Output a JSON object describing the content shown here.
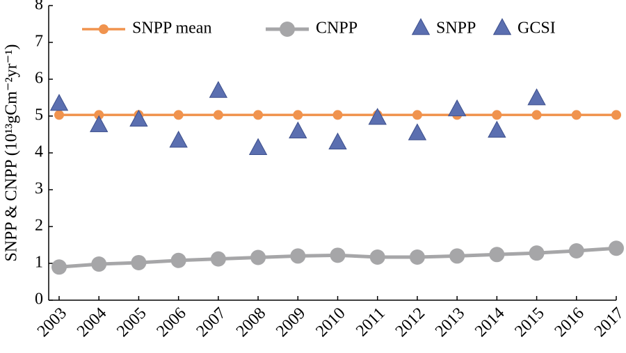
{
  "chart_data": {
    "type": "line",
    "y_label": "SNPP & CNPP (10¹³gCm⁻²yr⁻¹)",
    "categories": [
      "2003",
      "2004",
      "2005",
      "2006",
      "2007",
      "2008",
      "2009",
      "2010",
      "2011",
      "2012",
      "2013",
      "2014",
      "2015",
      "2016",
      "2017"
    ],
    "series": [
      {
        "name": "SNPP mean",
        "color": "#f0934e",
        "style": "line-marker",
        "values": [
          5.03,
          5.03,
          5.03,
          5.03,
          5.03,
          5.03,
          5.03,
          5.03,
          5.03,
          5.03,
          5.03,
          5.03,
          5.03,
          5.03,
          5.03
        ]
      },
      {
        "name": "CNPP",
        "color": "#a6a6a8",
        "style": "line-marker-large",
        "values": [
          0.9,
          0.98,
          1.02,
          1.08,
          1.12,
          1.16,
          1.2,
          1.22,
          1.17,
          1.17,
          1.2,
          1.24,
          1.28,
          1.34,
          1.41
        ]
      },
      {
        "name": "SNPP",
        "color": "#5b6fb0",
        "style": "triangle",
        "values": [
          5.3,
          4.72,
          4.87,
          4.3,
          5.65,
          4.1,
          4.55,
          4.25,
          4.92,
          4.5,
          5.15,
          4.57,
          5.45,
          null,
          null
        ]
      },
      {
        "name": "GCSI",
        "color": "#5b6fb0",
        "style": "triangle",
        "values": [
          null,
          null,
          null,
          null,
          null,
          null,
          null,
          null,
          null,
          null,
          null,
          null,
          null,
          null,
          null
        ]
      }
    ],
    "ylim": [
      0,
      8
    ],
    "yticks": [
      0,
      1,
      2,
      3,
      4,
      5,
      6,
      7,
      8
    ],
    "legend": "top"
  }
}
